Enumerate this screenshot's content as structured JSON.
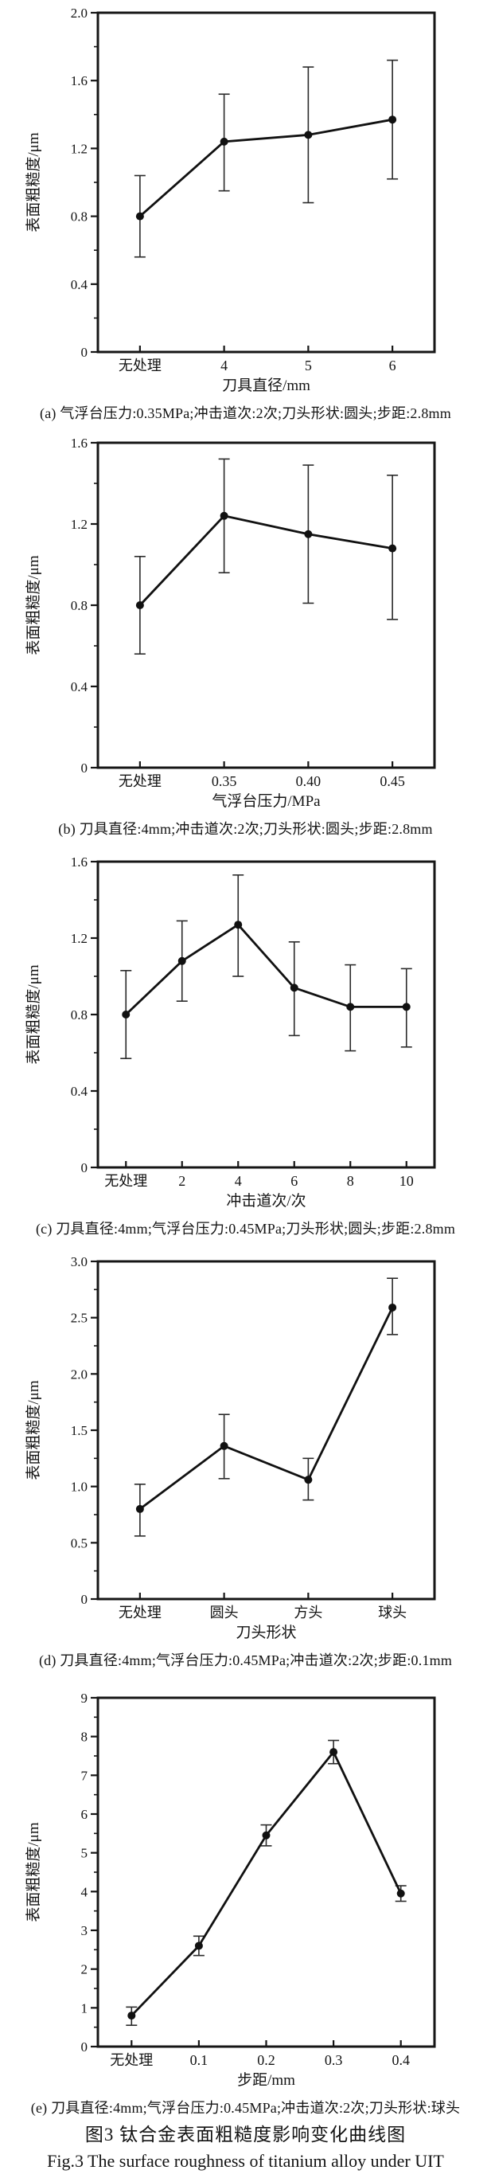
{
  "figure": {
    "caption_cn": "图3  钛合金表面粗糙度影响变化曲线图",
    "caption_en": "Fig.3  The surface roughness of titanium alloy under UIT"
  },
  "chart_data": [
    {
      "id": "a",
      "type": "line",
      "xlabel": "刀具直径/mm",
      "ylabel": "表面粗糙度/μm",
      "categories": [
        "无处理",
        "4",
        "5",
        "6"
      ],
      "values": [
        0.8,
        1.24,
        1.28,
        1.37
      ],
      "err_low": [
        0.56,
        0.95,
        0.88,
        1.02
      ],
      "err_high": [
        1.04,
        1.52,
        1.68,
        1.72
      ],
      "ylim": [
        0,
        2.0
      ],
      "ytick_values": [
        0,
        0.4,
        0.8,
        1.2,
        1.6,
        2.0
      ],
      "ytick_labels": [
        "0",
        "0.4",
        "0.8",
        "1.2",
        "1.6",
        "2.0"
      ],
      "yminor_step": 0.2,
      "legend": "none",
      "grid": "off",
      "caption": "(a) 气浮台压力:0.35MPa;冲击道次:2次;刀头形状:圆头;步距:2.8mm"
    },
    {
      "id": "b",
      "type": "line",
      "xlabel": "气浮台压力/MPa",
      "ylabel": "表面粗糙度/μm",
      "categories": [
        "无处理",
        "0.35",
        "0.40",
        "0.45"
      ],
      "values": [
        0.8,
        1.24,
        1.15,
        1.08
      ],
      "err_low": [
        0.56,
        0.96,
        0.81,
        0.73
      ],
      "err_high": [
        1.04,
        1.52,
        1.49,
        1.44
      ],
      "ylim": [
        0,
        1.6
      ],
      "ytick_values": [
        0,
        0.4,
        0.8,
        1.2,
        1.6
      ],
      "ytick_labels": [
        "0",
        "0.4",
        "0.8",
        "1.2",
        "1.6"
      ],
      "yminor_step": 0.2,
      "legend": "none",
      "grid": "off",
      "caption": "(b) 刀具直径:4mm;冲击道次:2次;刀头形状:圆头;步距:2.8mm"
    },
    {
      "id": "c",
      "type": "line",
      "xlabel": "冲击道次/次",
      "ylabel": "表面粗糙度/μm",
      "categories": [
        "无处理",
        "2",
        "4",
        "6",
        "8",
        "10"
      ],
      "values": [
        0.8,
        1.08,
        1.27,
        0.94,
        0.84,
        0.84
      ],
      "err_low": [
        0.57,
        0.87,
        1.0,
        0.69,
        0.61,
        0.63
      ],
      "err_high": [
        1.03,
        1.29,
        1.53,
        1.18,
        1.06,
        1.04
      ],
      "ylim": [
        0,
        1.6
      ],
      "ytick_values": [
        0,
        0.4,
        0.8,
        1.2,
        1.6
      ],
      "ytick_labels": [
        "0",
        "0.4",
        "0.8",
        "1.2",
        "1.6"
      ],
      "yminor_step": 0.2,
      "legend": "none",
      "grid": "off",
      "caption": "(c) 刀具直径:4mm;气浮台压力:0.45MPa;刀头形状;圆头;步距:2.8mm"
    },
    {
      "id": "d",
      "type": "line",
      "xlabel": "刀头形状",
      "ylabel": "表面粗糙度/μm",
      "categories": [
        "无处理",
        "圆头",
        "方头",
        "球头"
      ],
      "values": [
        0.8,
        1.36,
        1.06,
        2.59
      ],
      "err_low": [
        0.56,
        1.07,
        0.88,
        2.35
      ],
      "err_high": [
        1.02,
        1.64,
        1.25,
        2.85
      ],
      "ylim": [
        0,
        3.0
      ],
      "ytick_values": [
        0,
        0.5,
        1.0,
        1.5,
        2.0,
        2.5,
        3.0
      ],
      "ytick_labels": [
        "0",
        "0.5",
        "1.0",
        "1.5",
        "2.0",
        "2.5",
        "3.0"
      ],
      "yminor_step": 0.25,
      "legend": "none",
      "grid": "off",
      "caption": "(d) 刀具直径:4mm;气浮台压力:0.45MPa;冲击道次:2次;步距:0.1mm"
    },
    {
      "id": "e",
      "type": "line",
      "xlabel": "步距/mm",
      "ylabel": "表面粗糙度/μm",
      "categories": [
        "无处理",
        "0.1",
        "0.2",
        "0.3",
        "0.4"
      ],
      "values": [
        0.8,
        2.6,
        5.45,
        7.6,
        3.95
      ],
      "err_low": [
        0.55,
        2.35,
        5.18,
        7.3,
        3.75
      ],
      "err_high": [
        1.02,
        2.85,
        5.72,
        7.9,
        4.15
      ],
      "ylim": [
        0,
        9
      ],
      "ytick_values": [
        0,
        1,
        2,
        3,
        4,
        5,
        6,
        7,
        8,
        9
      ],
      "ytick_labels": [
        "0",
        "1",
        "2",
        "3",
        "4",
        "5",
        "6",
        "7",
        "8",
        "9"
      ],
      "yminor_step": 0.5,
      "legend": "none",
      "grid": "off",
      "caption": "(e) 刀具直径:4mm;气浮台压力:0.45MPa;冲击道次:2次;刀头形状:球头"
    }
  ],
  "style_colors": {
    "line": "#111111",
    "marker": "#111111",
    "error_bar": "#2a2a2a",
    "axis": "#161616",
    "background": "#ffffff"
  }
}
